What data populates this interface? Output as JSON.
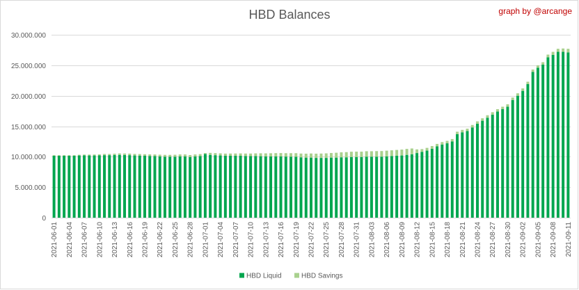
{
  "chart_data": {
    "type": "bar",
    "stacked": true,
    "title": "HBD Balances",
    "annotation": "graph by @arcange",
    "xlabel": "",
    "ylabel": "",
    "ylim": [
      0,
      30000000
    ],
    "yticks": [
      0,
      5000000,
      10000000,
      15000000,
      20000000,
      25000000,
      30000000
    ],
    "ytick_labels": [
      "0",
      "5.000.000",
      "10.000.000",
      "15.000.000",
      "20.000.000",
      "25.000.000",
      "30.000.000"
    ],
    "grid": true,
    "legend_position": "bottom",
    "x_tick_step": 3,
    "categories": [
      "2021-06-01",
      "2021-06-02",
      "2021-06-03",
      "2021-06-04",
      "2021-06-05",
      "2021-06-06",
      "2021-06-07",
      "2021-06-08",
      "2021-06-09",
      "2021-06-10",
      "2021-06-11",
      "2021-06-12",
      "2021-06-13",
      "2021-06-14",
      "2021-06-15",
      "2021-06-16",
      "2021-06-17",
      "2021-06-18",
      "2021-06-19",
      "2021-06-20",
      "2021-06-21",
      "2021-06-22",
      "2021-06-23",
      "2021-06-24",
      "2021-06-25",
      "2021-06-26",
      "2021-06-27",
      "2021-06-28",
      "2021-06-29",
      "2021-06-30",
      "2021-07-01",
      "2021-07-02",
      "2021-07-03",
      "2021-07-04",
      "2021-07-05",
      "2021-07-06",
      "2021-07-07",
      "2021-07-08",
      "2021-07-09",
      "2021-07-10",
      "2021-07-11",
      "2021-07-12",
      "2021-07-13",
      "2021-07-14",
      "2021-07-15",
      "2021-07-16",
      "2021-07-17",
      "2021-07-18",
      "2021-07-19",
      "2021-07-20",
      "2021-07-21",
      "2021-07-22",
      "2021-07-23",
      "2021-07-24",
      "2021-07-25",
      "2021-07-26",
      "2021-07-27",
      "2021-07-28",
      "2021-07-29",
      "2021-07-30",
      "2021-07-31",
      "2021-08-01",
      "2021-08-02",
      "2021-08-03",
      "2021-08-04",
      "2021-08-05",
      "2021-08-06",
      "2021-08-07",
      "2021-08-08",
      "2021-08-09",
      "2021-08-10",
      "2021-08-11",
      "2021-08-12",
      "2021-08-13",
      "2021-08-14",
      "2021-08-15",
      "2021-08-16",
      "2021-08-17",
      "2021-08-18",
      "2021-08-19",
      "2021-08-20",
      "2021-08-21",
      "2021-08-22",
      "2021-08-23",
      "2021-08-24",
      "2021-08-25",
      "2021-08-26",
      "2021-08-27",
      "2021-08-28",
      "2021-08-29",
      "2021-08-30",
      "2021-08-31",
      "2021-09-01",
      "2021-09-02",
      "2021-09-03",
      "2021-09-04",
      "2021-09-05",
      "2021-09-06",
      "2021-09-07",
      "2021-09-08",
      "2021-09-09",
      "2021-09-10",
      "2021-09-11"
    ],
    "series": [
      {
        "name": "HBD Liquid",
        "color": "#00a64f",
        "values": [
          10150000,
          10150000,
          10150000,
          10150000,
          10150000,
          10200000,
          10220000,
          10200000,
          10200000,
          10210000,
          10250000,
          10250000,
          10280000,
          10300000,
          10280000,
          10250000,
          10200000,
          10180000,
          10150000,
          10120000,
          10100000,
          10050000,
          10000000,
          10000000,
          10000000,
          10050000,
          10050000,
          9950000,
          10050000,
          10100000,
          10450000,
          10300000,
          10250000,
          10200000,
          10150000,
          10150000,
          10150000,
          10150000,
          10120000,
          10100000,
          10100000,
          10080000,
          10050000,
          10050000,
          10050000,
          10050000,
          10020000,
          10000000,
          9980000,
          9900000,
          9850000,
          9850000,
          9800000,
          9800000,
          9800000,
          9850000,
          9850000,
          9900000,
          9900000,
          9950000,
          9950000,
          9950000,
          10000000,
          10000000,
          10000000,
          10000000,
          10050000,
          10100000,
          10150000,
          10200000,
          10300000,
          10400000,
          10600000,
          10800000,
          11000000,
          11300000,
          11700000,
          12000000,
          12200000,
          12500000,
          13700000,
          14000000,
          14200000,
          14800000,
          15400000,
          15900000,
          16400000,
          16900000,
          17400000,
          17800000,
          18200000,
          19300000,
          20000000,
          20800000,
          21900000,
          23900000,
          24600000,
          25100000,
          26300000,
          26700000,
          27200000,
          27200000,
          27100000
        ]
      },
      {
        "name": "HBD Savings",
        "color": "#a9d18e",
        "values": [
          100000,
          100000,
          100000,
          100000,
          100000,
          120000,
          130000,
          150000,
          160000,
          180000,
          200000,
          200000,
          220000,
          240000,
          250000,
          260000,
          260000,
          260000,
          260000,
          260000,
          270000,
          280000,
          300000,
          300000,
          320000,
          320000,
          320000,
          320000,
          320000,
          330000,
          150000,
          330000,
          340000,
          350000,
          360000,
          370000,
          380000,
          390000,
          400000,
          420000,
          450000,
          480000,
          500000,
          520000,
          540000,
          550000,
          560000,
          580000,
          600000,
          620000,
          650000,
          680000,
          700000,
          720000,
          750000,
          760000,
          800000,
          820000,
          850000,
          870000,
          880000,
          880000,
          900000,
          900000,
          920000,
          930000,
          940000,
          950000,
          960000,
          970000,
          980000,
          950000,
          600000,
          450000,
          450000,
          450000,
          400000,
          400000,
          400000,
          400000,
          400000,
          400000,
          400000,
          400000,
          400000,
          400000,
          400000,
          400000,
          400000,
          400000,
          400000,
          400000,
          400000,
          400000,
          400000,
          400000,
          400000,
          400000,
          450000,
          500000,
          500000,
          550000,
          600000
        ]
      }
    ]
  }
}
